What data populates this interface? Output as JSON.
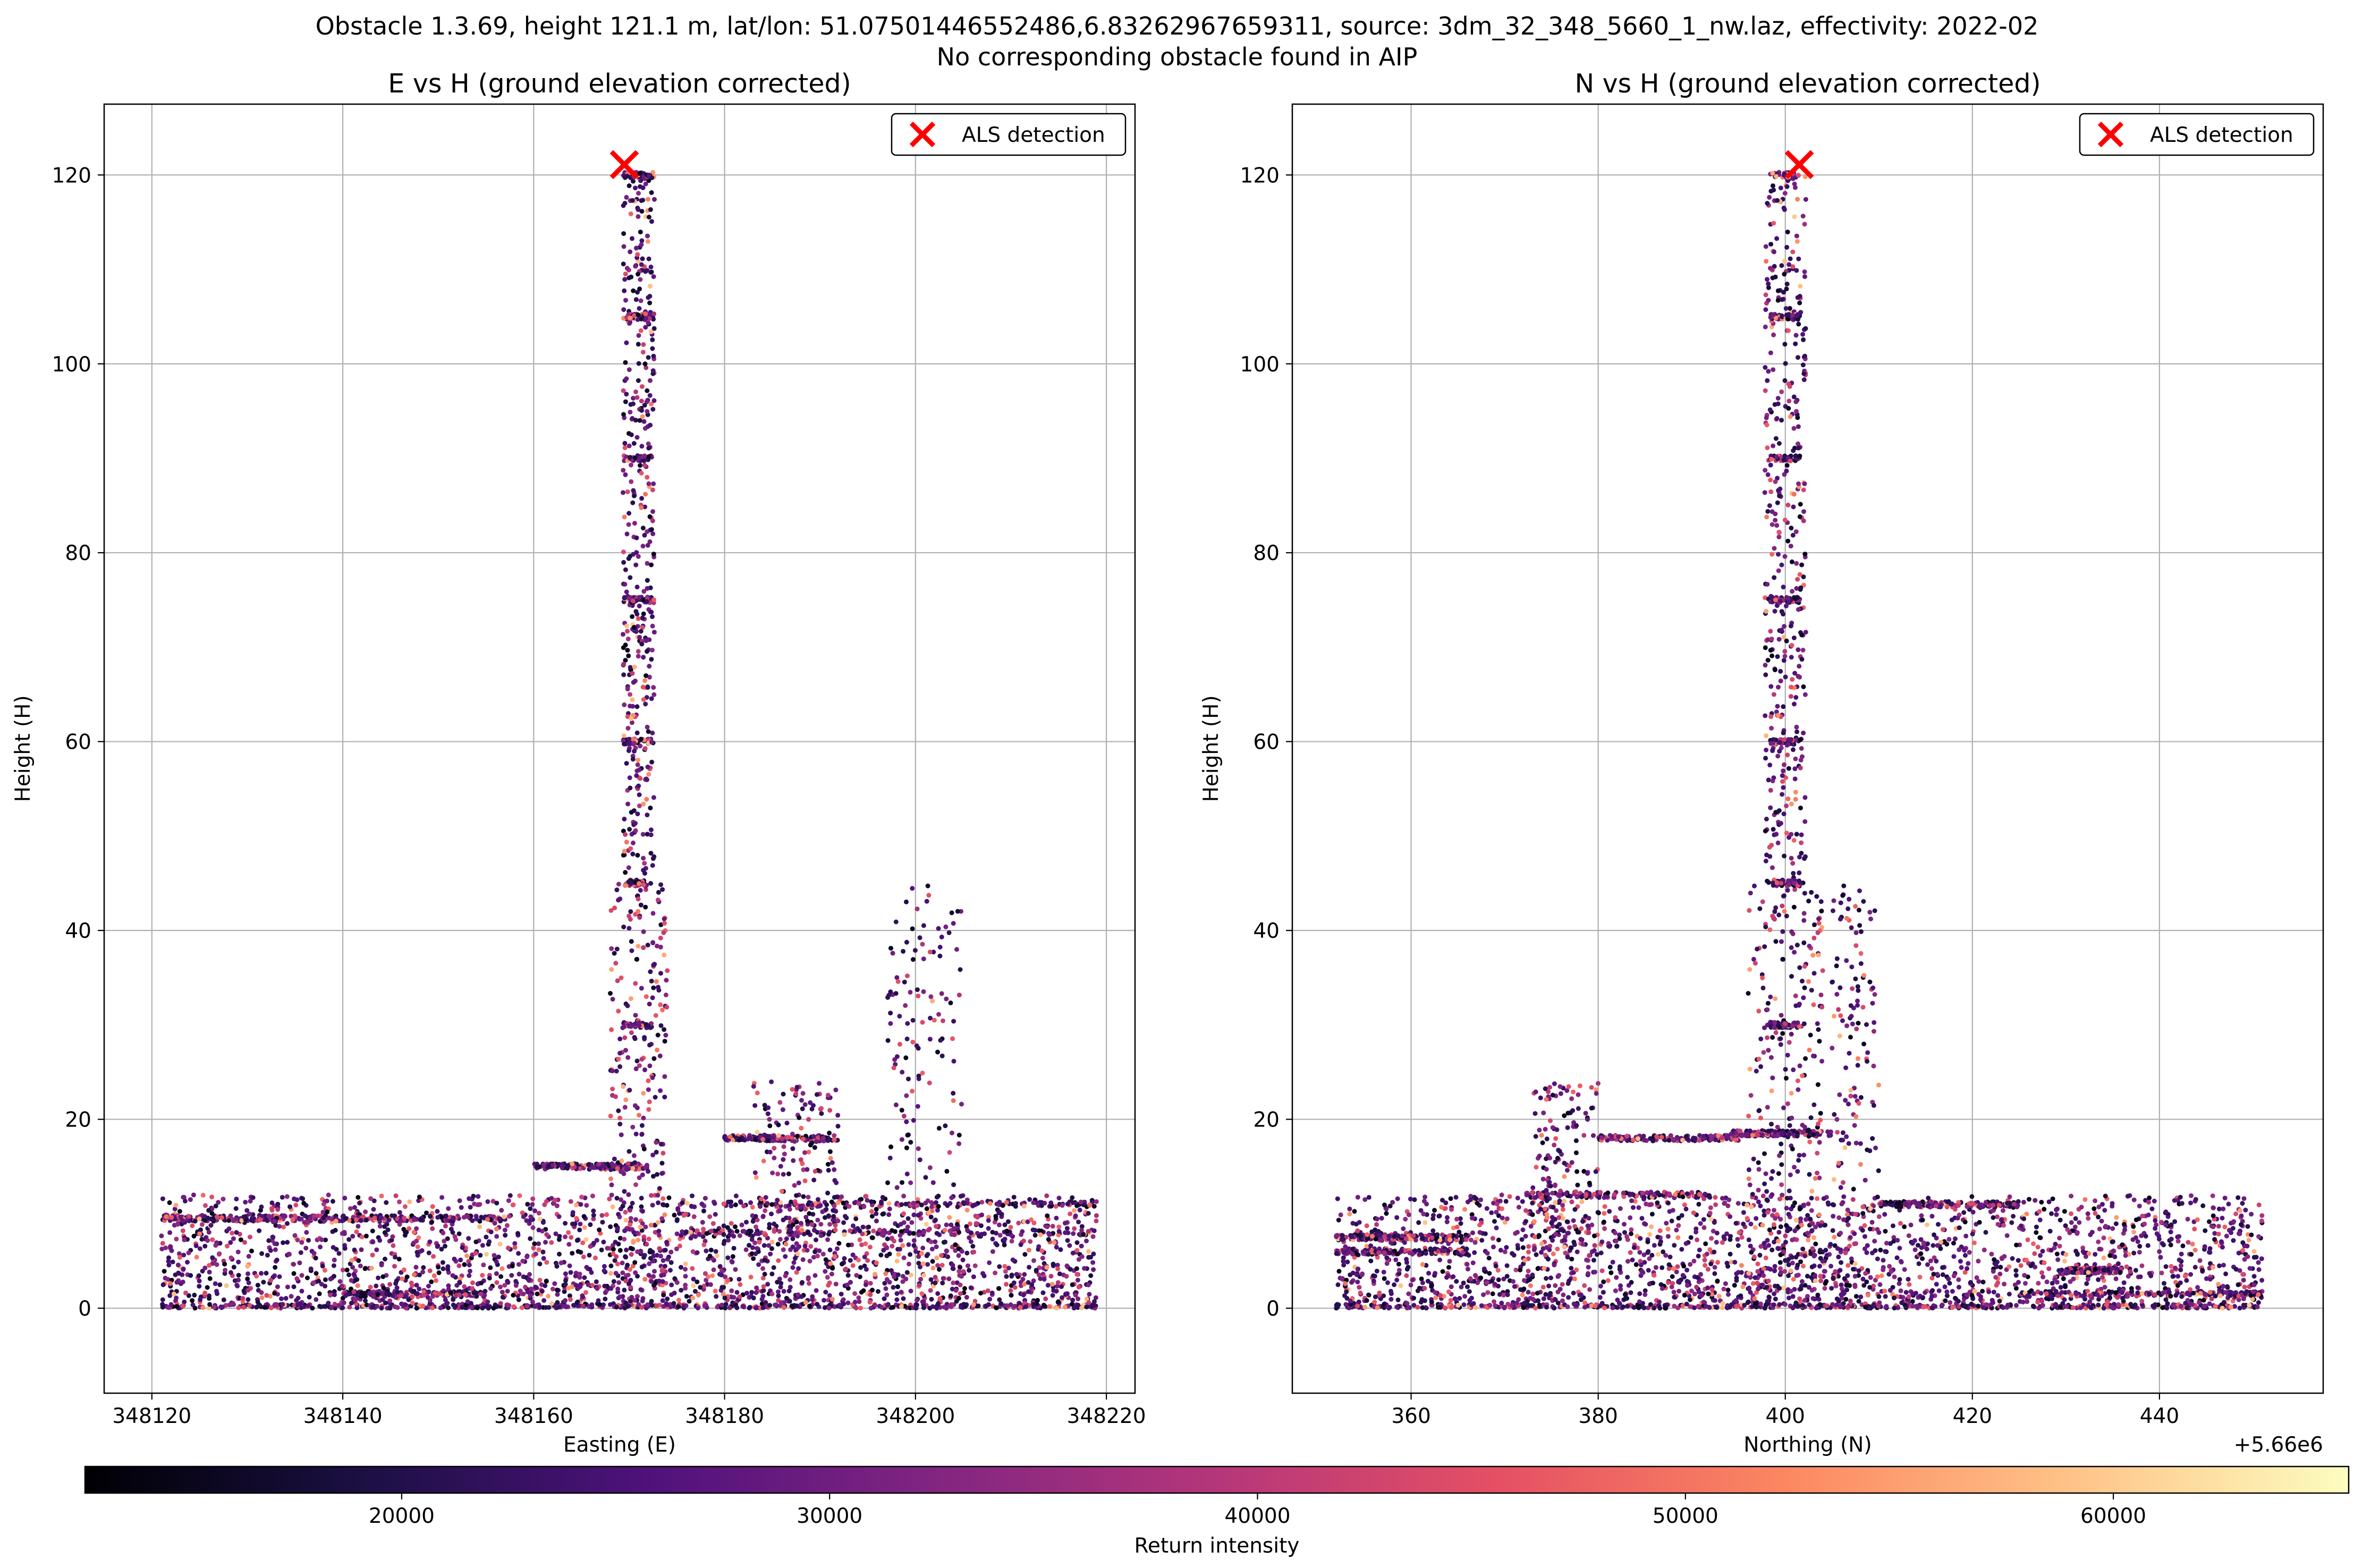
{
  "suptitle": {
    "line1": "Obstacle 1.3.69, height 121.1 m, lat/lon: 51.07501446552486,6.83262967659311, source: 3dm_32_348_5660_1_nw.laz, effectivity: 2022-02",
    "line2": "No corresponding obstacle found in AIP"
  },
  "chart_data": [
    {
      "type": "scatter",
      "title": "E vs H (ground elevation corrected)",
      "xlabel": "Easting (E)",
      "ylabel": "Height (H)",
      "xlim": [
        348115,
        348223
      ],
      "ylim": [
        -9,
        127.5
      ],
      "xticks": [
        348120,
        348140,
        348160,
        348180,
        348200,
        348220
      ],
      "xtick_labels": [
        "348120",
        "348140",
        "348160",
        "348180",
        "348200",
        "348220"
      ],
      "yticks": [
        0,
        20,
        40,
        60,
        80,
        100,
        120
      ],
      "ytick_labels": [
        "0",
        "20",
        "40",
        "60",
        "80",
        "100",
        "120"
      ],
      "offset_label": "",
      "grid": true,
      "legend": {
        "location": "upper right",
        "entries": [
          "ALS detection"
        ]
      },
      "detection": {
        "x": 348169.5,
        "y": 121.1,
        "color": "#ff0000",
        "marker": "x"
      },
      "point_cloud_regions": [
        {
          "x": [
            348121,
            348219
          ],
          "y": [
            0,
            12
          ],
          "intensity": [
            15000,
            60000
          ]
        },
        {
          "x": [
            348168,
            348174
          ],
          "y": [
            0,
            120
          ],
          "intensity": [
            15000,
            50000
          ]
        },
        {
          "x": [
            348197,
            348205
          ],
          "y": [
            0,
            45
          ],
          "intensity": [
            15000,
            50000
          ]
        },
        {
          "x": [
            348183,
            348192
          ],
          "y": [
            5,
            24
          ],
          "intensity": [
            15000,
            50000
          ]
        }
      ]
    },
    {
      "type": "scatter",
      "title": "N vs H (ground elevation corrected)",
      "xlabel": "Northing (N)",
      "ylabel": "Height (H)",
      "xlim": [
        347.3,
        457.5
      ],
      "ylim": [
        -9,
        127.5
      ],
      "xticks": [
        360,
        380,
        400,
        420,
        440
      ],
      "xtick_labels": [
        "360",
        "380",
        "400",
        "420",
        "440"
      ],
      "yticks": [
        0,
        20,
        40,
        60,
        80,
        100,
        120
      ],
      "ytick_labels": [
        "0",
        "20",
        "40",
        "60",
        "80",
        "100",
        "120"
      ],
      "offset_label": "+5.66e6",
      "grid": true,
      "legend": {
        "location": "upper right",
        "entries": [
          "ALS detection"
        ]
      },
      "detection": {
        "x": 401.5,
        "y": 121.1,
        "color": "#ff0000",
        "marker": "x"
      },
      "point_cloud_regions": [
        {
          "x": [
            352,
            451
          ],
          "y": [
            0,
            12
          ],
          "intensity": [
            15000,
            60000
          ]
        },
        {
          "x": [
            396,
            404
          ],
          "y": [
            0,
            120
          ],
          "intensity": [
            15000,
            50000
          ]
        },
        {
          "x": [
            405,
            410
          ],
          "y": [
            0,
            45
          ],
          "intensity": [
            15000,
            50000
          ]
        },
        {
          "x": [
            373,
            380
          ],
          "y": [
            5,
            24
          ],
          "intensity": [
            15000,
            50000
          ]
        }
      ]
    }
  ],
  "colorbar": {
    "label": "Return intensity",
    "min": 12600,
    "max": 65500,
    "ticks": [
      20000,
      30000,
      40000,
      50000,
      60000
    ],
    "tick_labels": [
      "20000",
      "30000",
      "40000",
      "50000",
      "60000"
    ],
    "colormap": "magma",
    "stops": [
      "#000004",
      "#1c1044",
      "#4f127b",
      "#812581",
      "#b5367a",
      "#e55064",
      "#fb8761",
      "#fec287",
      "#fcfdbf"
    ]
  },
  "colors": {
    "grid": "#b0b0b0",
    "detection": "#ff0000"
  }
}
